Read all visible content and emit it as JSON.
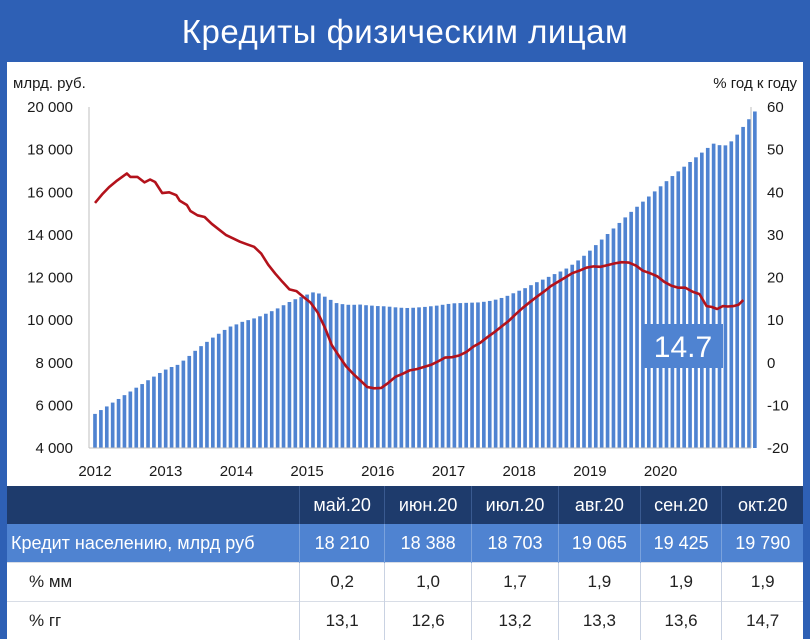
{
  "title": "Кредиты физическим лицам",
  "chart_data": {
    "type": "bar+line",
    "left_axis_label": "млрд. руб.",
    "right_axis_label": "% год к году",
    "left_ylim": [
      4000,
      20000
    ],
    "left_ticks": [
      "20 000",
      "18 000",
      "16 000",
      "14 000",
      "12 000",
      "10 000",
      "8 000",
      "6 000",
      "4 000"
    ],
    "left_tick_values": [
      20000,
      18000,
      16000,
      14000,
      12000,
      10000,
      8000,
      6000,
      4000
    ],
    "right_ylim": [
      -20,
      60
    ],
    "right_ticks": [
      "60",
      "50",
      "40",
      "30",
      "20",
      "10",
      "0",
      "-10",
      "-20"
    ],
    "right_tick_values": [
      60,
      50,
      40,
      30,
      20,
      10,
      0,
      -10,
      -20
    ],
    "x_ticks": [
      "2012",
      "2013",
      "2014",
      "2015",
      "2016",
      "2017",
      "2018",
      "2019",
      "2020"
    ],
    "x_tick_values": [
      2012,
      2013,
      2014,
      2015,
      2016,
      2017,
      2018,
      2019,
      2020
    ],
    "grid": false,
    "bar_color": "#4f83d1",
    "line_color": "#b3121b",
    "callout": "14.7",
    "bars": {
      "name": "Кредит населению, млрд руб",
      "x_start": 2012.0,
      "x_step": 0.08333,
      "values": [
        5600,
        5780,
        5950,
        6130,
        6300,
        6480,
        6650,
        6830,
        7000,
        7180,
        7350,
        7520,
        7680,
        7800,
        7900,
        8100,
        8320,
        8560,
        8780,
        8980,
        9180,
        9360,
        9540,
        9700,
        9800,
        9920,
        10000,
        10080,
        10180,
        10300,
        10420,
        10550,
        10700,
        10850,
        10980,
        11080,
        11200,
        11300,
        11250,
        11100,
        10950,
        10800,
        10750,
        10720,
        10720,
        10730,
        10700,
        10680,
        10660,
        10650,
        10630,
        10600,
        10580,
        10570,
        10580,
        10600,
        10620,
        10650,
        10680,
        10720,
        10760,
        10790,
        10800,
        10810,
        10820,
        10830,
        10860,
        10900,
        10960,
        11040,
        11140,
        11260,
        11380,
        11500,
        11640,
        11780,
        11900,
        12030,
        12160,
        12280,
        12420,
        12600,
        12800,
        13020,
        13260,
        13520,
        13780,
        14040,
        14300,
        14560,
        14820,
        15080,
        15320,
        15560,
        15800,
        16040,
        16280,
        16520,
        16760,
        16980,
        17200,
        17420,
        17640,
        17860,
        18080,
        18280,
        18210,
        18200,
        18388,
        18703,
        19065,
        19425,
        19790
      ]
    },
    "line": {
      "name": "% год к году",
      "points": [
        [
          2012.0,
          37.5
        ],
        [
          2012.1,
          39.5
        ],
        [
          2012.2,
          41.2
        ],
        [
          2012.3,
          42.6
        ],
        [
          2012.4,
          43.8
        ],
        [
          2012.45,
          44.4
        ],
        [
          2012.5,
          43.6
        ],
        [
          2012.6,
          43.6
        ],
        [
          2012.7,
          42.3
        ],
        [
          2012.78,
          43.0
        ],
        [
          2012.85,
          42.4
        ],
        [
          2012.95,
          39.8
        ],
        [
          2013.05,
          40.0
        ],
        [
          2013.15,
          39.3
        ],
        [
          2013.2,
          38.0
        ],
        [
          2013.3,
          37.0
        ],
        [
          2013.35,
          35.6
        ],
        [
          2013.45,
          34.6
        ],
        [
          2013.55,
          34.2
        ],
        [
          2013.65,
          32.6
        ],
        [
          2013.75,
          31.3
        ],
        [
          2013.85,
          30.0
        ],
        [
          2013.95,
          29.2
        ],
        [
          2014.05,
          28.4
        ],
        [
          2014.15,
          27.8
        ],
        [
          2014.25,
          27.2
        ],
        [
          2014.35,
          25.6
        ],
        [
          2014.45,
          23.0
        ],
        [
          2014.55,
          20.9
        ],
        [
          2014.65,
          19.0
        ],
        [
          2014.75,
          17.2
        ],
        [
          2014.85,
          16.8
        ],
        [
          2014.95,
          15.4
        ],
        [
          2015.05,
          14.1
        ],
        [
          2015.15,
          11.8
        ],
        [
          2015.25,
          8.3
        ],
        [
          2015.35,
          4.1
        ],
        [
          2015.45,
          1.6
        ],
        [
          2015.55,
          -0.8
        ],
        [
          2015.65,
          -2.6
        ],
        [
          2015.75,
          -4.1
        ],
        [
          2015.85,
          -5.7
        ],
        [
          2015.95,
          -6.0
        ],
        [
          2016.05,
          -5.9
        ],
        [
          2016.15,
          -4.7
        ],
        [
          2016.25,
          -3.3
        ],
        [
          2016.35,
          -2.6
        ],
        [
          2016.45,
          -1.8
        ],
        [
          2016.55,
          -1.5
        ],
        [
          2016.65,
          -1.0
        ],
        [
          2016.75,
          -0.5
        ],
        [
          2016.85,
          0.3
        ],
        [
          2016.95,
          1.2
        ],
        [
          2017.05,
          1.3
        ],
        [
          2017.15,
          1.7
        ],
        [
          2017.25,
          2.5
        ],
        [
          2017.35,
          3.8
        ],
        [
          2017.45,
          4.7
        ],
        [
          2017.55,
          6.0
        ],
        [
          2017.65,
          7.2
        ],
        [
          2017.75,
          8.5
        ],
        [
          2017.85,
          9.8
        ],
        [
          2017.95,
          11.4
        ],
        [
          2018.05,
          12.9
        ],
        [
          2018.15,
          14.2
        ],
        [
          2018.25,
          15.5
        ],
        [
          2018.35,
          16.7
        ],
        [
          2018.45,
          18.0
        ],
        [
          2018.55,
          19.0
        ],
        [
          2018.65,
          20.0
        ],
        [
          2018.75,
          21.0
        ],
        [
          2018.85,
          21.6
        ],
        [
          2018.95,
          22.3
        ],
        [
          2019.05,
          22.6
        ],
        [
          2019.15,
          22.5
        ],
        [
          2019.25,
          22.9
        ],
        [
          2019.35,
          23.3
        ],
        [
          2019.45,
          23.6
        ],
        [
          2019.55,
          23.5
        ],
        [
          2019.65,
          22.8
        ],
        [
          2019.75,
          21.6
        ],
        [
          2019.85,
          21.0
        ],
        [
          2019.95,
          20.3
        ],
        [
          2020.05,
          19.0
        ],
        [
          2020.15,
          18.1
        ],
        [
          2020.25,
          17.6
        ],
        [
          2020.35,
          17.6
        ],
        [
          2020.45,
          16.7
        ],
        [
          2020.55,
          16.1
        ],
        [
          2020.65,
          13.3
        ],
        [
          2020.72,
          13.1
        ],
        [
          2020.8,
          12.6
        ],
        [
          2020.88,
          13.3
        ],
        [
          2020.95,
          13.2
        ],
        [
          2021.03,
          13.3
        ],
        [
          2021.1,
          13.6
        ],
        [
          2021.17,
          14.7
        ]
      ]
    }
  },
  "table": {
    "headers": [
      "",
      "май.20",
      "июн.20",
      "июл.20",
      "авг.20",
      "сен.20",
      "окт.20"
    ],
    "rows": [
      {
        "label": "Кредит населению, млрд руб",
        "values": [
          "18 210",
          "18 388",
          "18 703",
          "19 065",
          "19 425",
          "19 790"
        ]
      },
      {
        "label": "% мм",
        "values": [
          "0,2",
          "1,0",
          "1,7",
          "1,9",
          "1,9",
          "1,9"
        ]
      },
      {
        "label": "% гг",
        "values": [
          "13,1",
          "12,6",
          "13,2",
          "13,3",
          "13,6",
          "14,7"
        ]
      }
    ]
  }
}
